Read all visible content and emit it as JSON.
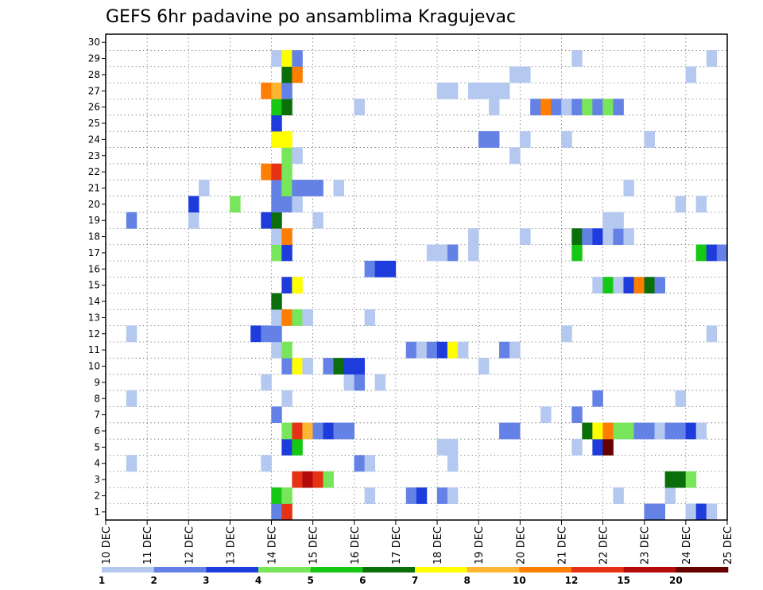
{
  "chart_data": {
    "type": "heatmap",
    "title": "GEFS 6hr padavine po ansamblima Kragujevac",
    "xlabel": "",
    "ylabel": "",
    "x_ticks": [
      "10 DEC",
      "11 DEC",
      "12 DEC",
      "13 DEC",
      "14 DEC",
      "15 DEC",
      "16 DEC",
      "17 DEC",
      "18 DEC",
      "19 DEC",
      "20 DEC",
      "21 DEC",
      "22 DEC",
      "23 DEC",
      "24 DEC",
      "25 DEC"
    ],
    "y_ticks": [
      "1",
      "2",
      "3",
      "4",
      "5",
      "6",
      "7",
      "8",
      "9",
      "10",
      "11",
      "12",
      "13",
      "14",
      "15",
      "16",
      "17",
      "18",
      "19",
      "20",
      "21",
      "22",
      "23",
      "24",
      "25",
      "26",
      "27",
      "28",
      "29",
      "30"
    ],
    "ylim": [
      0,
      30
    ],
    "x_unit": "day",
    "grid": true,
    "colorbar": {
      "levels": [
        "1",
        "2",
        "3",
        "4",
        "5",
        "6",
        "7",
        "8",
        "10",
        "12",
        "15",
        "20"
      ],
      "colors": [
        "#b4c8f0",
        "#6482e6",
        "#1e3cdc",
        "#78e65a",
        "#14c814",
        "#0a6e0a",
        "#ffff00",
        "#ffb432",
        "#ff7d00",
        "#e63214",
        "#b40a0a",
        "#640000"
      ]
    },
    "cells": [
      {
        "x": "14.00",
        "y": 1,
        "c": 1
      },
      {
        "x": "14.25",
        "y": 1,
        "c": 9
      },
      {
        "x": "23.00",
        "y": 1,
        "c": 1
      },
      {
        "x": "23.25",
        "y": 1,
        "c": 1
      },
      {
        "x": "24.00",
        "y": 1,
        "c": 0
      },
      {
        "x": "24.25",
        "y": 1,
        "c": 2
      },
      {
        "x": "24.50",
        "y": 1,
        "c": 0
      },
      {
        "x": "14.00",
        "y": 2,
        "c": 4
      },
      {
        "x": "14.25",
        "y": 2,
        "c": 3
      },
      {
        "x": "16.25",
        "y": 2,
        "c": 0
      },
      {
        "x": "17.25",
        "y": 2,
        "c": 1
      },
      {
        "x": "17.50",
        "y": 2,
        "c": 2
      },
      {
        "x": "18.00",
        "y": 2,
        "c": 1
      },
      {
        "x": "18.25",
        "y": 2,
        "c": 0
      },
      {
        "x": "22.25",
        "y": 2,
        "c": 0
      },
      {
        "x": "23.50",
        "y": 2,
        "c": 0
      },
      {
        "x": "14.50",
        "y": 3,
        "c": 9
      },
      {
        "x": "14.75",
        "y": 3,
        "c": 10
      },
      {
        "x": "15.00",
        "y": 3,
        "c": 9
      },
      {
        "x": "15.25",
        "y": 3,
        "c": 3
      },
      {
        "x": "23.50",
        "y": 3,
        "c": 5
      },
      {
        "x": "23.75",
        "y": 3,
        "c": 5
      },
      {
        "x": "24.00",
        "y": 3,
        "c": 3
      },
      {
        "x": "13.75",
        "y": 4,
        "c": 0
      },
      {
        "x": "10.50",
        "y": 4,
        "c": 0
      },
      {
        "x": "16.00",
        "y": 4,
        "c": 1
      },
      {
        "x": "16.25",
        "y": 4,
        "c": 0
      },
      {
        "x": "18.25",
        "y": 4,
        "c": 0
      },
      {
        "x": "14.25",
        "y": 5,
        "c": 2
      },
      {
        "x": "14.50",
        "y": 5,
        "c": 4
      },
      {
        "x": "18.00",
        "y": 5,
        "c": 0
      },
      {
        "x": "18.25",
        "y": 5,
        "c": 0
      },
      {
        "x": "21.25",
        "y": 5,
        "c": 0
      },
      {
        "x": "21.75",
        "y": 5,
        "c": 2
      },
      {
        "x": "22.00",
        "y": 5,
        "c": 11
      },
      {
        "x": "14.25",
        "y": 6,
        "c": 3
      },
      {
        "x": "14.50",
        "y": 6,
        "c": 9
      },
      {
        "x": "14.75",
        "y": 6,
        "c": 7
      },
      {
        "x": "15.00",
        "y": 6,
        "c": 1
      },
      {
        "x": "15.25",
        "y": 6,
        "c": 2
      },
      {
        "x": "15.50",
        "y": 6,
        "c": 1
      },
      {
        "x": "15.75",
        "y": 6,
        "c": 1
      },
      {
        "x": "19.50",
        "y": 6,
        "c": 1
      },
      {
        "x": "19.75",
        "y": 6,
        "c": 1
      },
      {
        "x": "21.50",
        "y": 6,
        "c": 5
      },
      {
        "x": "21.75",
        "y": 6,
        "c": 6
      },
      {
        "x": "22.00",
        "y": 6,
        "c": 8
      },
      {
        "x": "22.25",
        "y": 6,
        "c": 3
      },
      {
        "x": "22.50",
        "y": 6,
        "c": 3
      },
      {
        "x": "22.75",
        "y": 6,
        "c": 1
      },
      {
        "x": "23.00",
        "y": 6,
        "c": 1
      },
      {
        "x": "23.25",
        "y": 6,
        "c": 0
      },
      {
        "x": "23.50",
        "y": 6,
        "c": 1
      },
      {
        "x": "23.75",
        "y": 6,
        "c": 1
      },
      {
        "x": "24.00",
        "y": 6,
        "c": 2
      },
      {
        "x": "24.25",
        "y": 6,
        "c": 0
      },
      {
        "x": "14.00",
        "y": 7,
        "c": 1
      },
      {
        "x": "20.50",
        "y": 7,
        "c": 0
      },
      {
        "x": "21.25",
        "y": 7,
        "c": 1
      },
      {
        "x": "10.50",
        "y": 8,
        "c": 0
      },
      {
        "x": "14.25",
        "y": 8,
        "c": 0
      },
      {
        "x": "21.75",
        "y": 8,
        "c": 1
      },
      {
        "x": "23.75",
        "y": 8,
        "c": 0
      },
      {
        "x": "13.75",
        "y": 9,
        "c": 0
      },
      {
        "x": "15.75",
        "y": 9,
        "c": 0
      },
      {
        "x": "16.00",
        "y": 9,
        "c": 1
      },
      {
        "x": "16.50",
        "y": 9,
        "c": 0
      },
      {
        "x": "14.25",
        "y": 10,
        "c": 1
      },
      {
        "x": "14.50",
        "y": 10,
        "c": 6
      },
      {
        "x": "14.75",
        "y": 10,
        "c": 0
      },
      {
        "x": "15.25",
        "y": 10,
        "c": 1
      },
      {
        "x": "15.50",
        "y": 10,
        "c": 5
      },
      {
        "x": "15.75",
        "y": 10,
        "c": 2
      },
      {
        "x": "16.00",
        "y": 10,
        "c": 2
      },
      {
        "x": "19.00",
        "y": 10,
        "c": 0
      },
      {
        "x": "14.00",
        "y": 11,
        "c": 0
      },
      {
        "x": "14.25",
        "y": 11,
        "c": 3
      },
      {
        "x": "17.25",
        "y": 11,
        "c": 1
      },
      {
        "x": "17.50",
        "y": 11,
        "c": 0
      },
      {
        "x": "17.75",
        "y": 11,
        "c": 1
      },
      {
        "x": "18.00",
        "y": 11,
        "c": 2
      },
      {
        "x": "18.25",
        "y": 11,
        "c": 6
      },
      {
        "x": "18.50",
        "y": 11,
        "c": 0
      },
      {
        "x": "19.50",
        "y": 11,
        "c": 1
      },
      {
        "x": "19.75",
        "y": 11,
        "c": 0
      },
      {
        "x": "10.50",
        "y": 12,
        "c": 0
      },
      {
        "x": "13.50",
        "y": 12,
        "c": 2
      },
      {
        "x": "13.75",
        "y": 12,
        "c": 1
      },
      {
        "x": "14.00",
        "y": 12,
        "c": 1
      },
      {
        "x": "21.00",
        "y": 12,
        "c": 0
      },
      {
        "x": "24.50",
        "y": 12,
        "c": 0
      },
      {
        "x": "14.00",
        "y": 13,
        "c": 0
      },
      {
        "x": "14.25",
        "y": 13,
        "c": 8
      },
      {
        "x": "14.50",
        "y": 13,
        "c": 3
      },
      {
        "x": "14.75",
        "y": 13,
        "c": 0
      },
      {
        "x": "16.25",
        "y": 13,
        "c": 0
      },
      {
        "x": "14.00",
        "y": 14,
        "c": 5
      },
      {
        "x": "14.25",
        "y": 15,
        "c": 2
      },
      {
        "x": "14.50",
        "y": 15,
        "c": 6
      },
      {
        "x": "21.75",
        "y": 15,
        "c": 0
      },
      {
        "x": "22.00",
        "y": 15,
        "c": 4
      },
      {
        "x": "22.25",
        "y": 15,
        "c": 0
      },
      {
        "x": "22.50",
        "y": 15,
        "c": 2
      },
      {
        "x": "22.75",
        "y": 15,
        "c": 8
      },
      {
        "x": "23.00",
        "y": 15,
        "c": 5
      },
      {
        "x": "23.25",
        "y": 15,
        "c": 1
      },
      {
        "x": "16.25",
        "y": 16,
        "c": 1
      },
      {
        "x": "16.50",
        "y": 16,
        "c": 2
      },
      {
        "x": "16.75",
        "y": 16,
        "c": 2
      },
      {
        "x": "14.00",
        "y": 17,
        "c": 3
      },
      {
        "x": "14.25",
        "y": 17,
        "c": 2
      },
      {
        "x": "17.75",
        "y": 17,
        "c": 0
      },
      {
        "x": "18.00",
        "y": 17,
        "c": 0
      },
      {
        "x": "18.25",
        "y": 17,
        "c": 1
      },
      {
        "x": "18.75",
        "y": 17,
        "c": 0
      },
      {
        "x": "21.25",
        "y": 17,
        "c": 4
      },
      {
        "x": "24.25",
        "y": 17,
        "c": 4
      },
      {
        "x": "24.50",
        "y": 17,
        "c": 2
      },
      {
        "x": "24.75",
        "y": 17,
        "c": 1
      },
      {
        "x": "14.00",
        "y": 18,
        "c": 0
      },
      {
        "x": "14.25",
        "y": 18,
        "c": 8
      },
      {
        "x": "18.75",
        "y": 18,
        "c": 0
      },
      {
        "x": "20.00",
        "y": 18,
        "c": 0
      },
      {
        "x": "21.25",
        "y": 18,
        "c": 5
      },
      {
        "x": "21.50",
        "y": 18,
        "c": 1
      },
      {
        "x": "21.75",
        "y": 18,
        "c": 2
      },
      {
        "x": "22.00",
        "y": 18,
        "c": 0
      },
      {
        "x": "22.25",
        "y": 18,
        "c": 1
      },
      {
        "x": "22.50",
        "y": 18,
        "c": 0
      },
      {
        "x": "10.50",
        "y": 19,
        "c": 1
      },
      {
        "x": "12.00",
        "y": 19,
        "c": 0
      },
      {
        "x": "13.75",
        "y": 19,
        "c": 2
      },
      {
        "x": "14.00",
        "y": 19,
        "c": 5
      },
      {
        "x": "15.00",
        "y": 19,
        "c": 0
      },
      {
        "x": "22.00",
        "y": 19,
        "c": 0
      },
      {
        "x": "22.25",
        "y": 19,
        "c": 0
      },
      {
        "x": "12.00",
        "y": 20,
        "c": 2
      },
      {
        "x": "13.00",
        "y": 20,
        "c": 3
      },
      {
        "x": "14.00",
        "y": 20,
        "c": 1
      },
      {
        "x": "14.25",
        "y": 20,
        "c": 1
      },
      {
        "x": "14.50",
        "y": 20,
        "c": 0
      },
      {
        "x": "23.75",
        "y": 20,
        "c": 0
      },
      {
        "x": "24.25",
        "y": 20,
        "c": 0
      },
      {
        "x": "12.25",
        "y": 21,
        "c": 0
      },
      {
        "x": "14.00",
        "y": 21,
        "c": 1
      },
      {
        "x": "14.25",
        "y": 21,
        "c": 3
      },
      {
        "x": "14.50",
        "y": 21,
        "c": 1
      },
      {
        "x": "14.75",
        "y": 21,
        "c": 1
      },
      {
        "x": "15.00",
        "y": 21,
        "c": 1
      },
      {
        "x": "15.50",
        "y": 21,
        "c": 0
      },
      {
        "x": "22.50",
        "y": 21,
        "c": 0
      },
      {
        "x": "13.75",
        "y": 22,
        "c": 8
      },
      {
        "x": "14.00",
        "y": 22,
        "c": 9
      },
      {
        "x": "14.25",
        "y": 22,
        "c": 3
      },
      {
        "x": "14.25",
        "y": 23,
        "c": 3
      },
      {
        "x": "14.50",
        "y": 23,
        "c": 0
      },
      {
        "x": "19.75",
        "y": 23,
        "c": 0
      },
      {
        "x": "14.00",
        "y": 24,
        "c": 6
      },
      {
        "x": "14.25",
        "y": 24,
        "c": 6
      },
      {
        "x": "19.00",
        "y": 24,
        "c": 1
      },
      {
        "x": "19.25",
        "y": 24,
        "c": 1
      },
      {
        "x": "20.00",
        "y": 24,
        "c": 0
      },
      {
        "x": "21.00",
        "y": 24,
        "c": 0
      },
      {
        "x": "23.00",
        "y": 24,
        "c": 0
      },
      {
        "x": "14.00",
        "y": 25,
        "c": 2
      },
      {
        "x": "14.00",
        "y": 26,
        "c": 4
      },
      {
        "x": "14.25",
        "y": 26,
        "c": 5
      },
      {
        "x": "16.00",
        "y": 26,
        "c": 0
      },
      {
        "x": "19.25",
        "y": 26,
        "c": 0
      },
      {
        "x": "20.25",
        "y": 26,
        "c": 1
      },
      {
        "x": "20.50",
        "y": 26,
        "c": 8
      },
      {
        "x": "20.75",
        "y": 26,
        "c": 1
      },
      {
        "x": "21.00",
        "y": 26,
        "c": 0
      },
      {
        "x": "21.25",
        "y": 26,
        "c": 1
      },
      {
        "x": "21.50",
        "y": 26,
        "c": 3
      },
      {
        "x": "21.75",
        "y": 26,
        "c": 1
      },
      {
        "x": "22.00",
        "y": 26,
        "c": 3
      },
      {
        "x": "22.25",
        "y": 26,
        "c": 1
      },
      {
        "x": "13.75",
        "y": 27,
        "c": 8
      },
      {
        "x": "14.00",
        "y": 27,
        "c": 7
      },
      {
        "x": "14.25",
        "y": 27,
        "c": 1
      },
      {
        "x": "18.00",
        "y": 27,
        "c": 0
      },
      {
        "x": "18.25",
        "y": 27,
        "c": 0
      },
      {
        "x": "18.75",
        "y": 27,
        "c": 0
      },
      {
        "x": "19.00",
        "y": 27,
        "c": 0
      },
      {
        "x": "19.25",
        "y": 27,
        "c": 0
      },
      {
        "x": "19.50",
        "y": 27,
        "c": 0
      },
      {
        "x": "14.25",
        "y": 28,
        "c": 5
      },
      {
        "x": "14.50",
        "y": 28,
        "c": 8
      },
      {
        "x": "19.75",
        "y": 28,
        "c": 0
      },
      {
        "x": "20.00",
        "y": 28,
        "c": 0
      },
      {
        "x": "24.00",
        "y": 28,
        "c": 0
      },
      {
        "x": "14.00",
        "y": 29,
        "c": 0
      },
      {
        "x": "14.25",
        "y": 29,
        "c": 6
      },
      {
        "x": "14.50",
        "y": 29,
        "c": 1
      },
      {
        "x": "21.25",
        "y": 29,
        "c": 0
      },
      {
        "x": "24.50",
        "y": 29,
        "c": 0
      }
    ]
  }
}
